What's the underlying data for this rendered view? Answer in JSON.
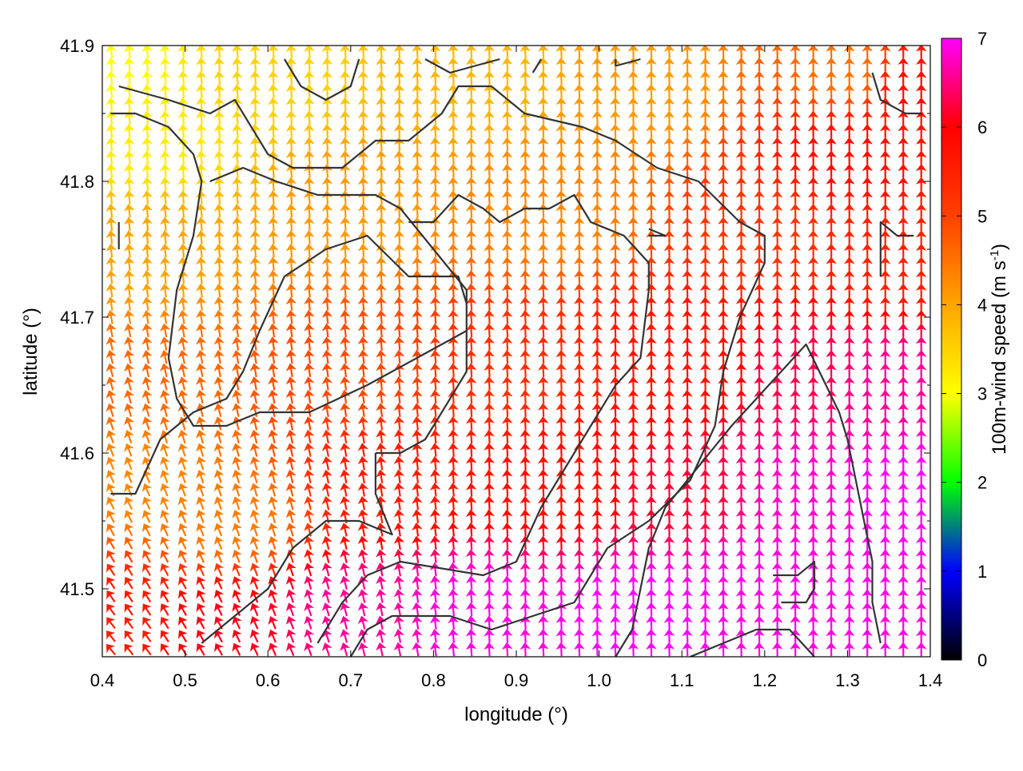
{
  "chart_data": {
    "type": "vector-field",
    "xlabel": "longitude (°)",
    "ylabel": "latitude (°)",
    "colorbar_label_main": "100m-wind speed (m s",
    "colorbar_label_sup": "-1",
    "colorbar_label_end": ")",
    "xlim": [
      0.4,
      1.4
    ],
    "ylim": [
      41.45,
      41.9
    ],
    "xticks": [
      0.4,
      0.5,
      0.6,
      0.7,
      0.8,
      0.9,
      1.0,
      1.1,
      1.2,
      1.3,
      1.4
    ],
    "xtick_labels": [
      "0.4",
      "0.5",
      "0.6",
      "0.7",
      "0.8",
      "0.9",
      "1.0",
      "1.1",
      "1.2",
      "1.3",
      "1.4"
    ],
    "yticks": [
      41.5,
      41.6,
      41.7,
      41.8,
      41.9
    ],
    "ytick_labels": [
      "41.5",
      "41.6",
      "41.7",
      "41.8",
      "41.9"
    ],
    "colorbar": {
      "range": [
        0,
        7
      ],
      "ticks": [
        0,
        1,
        2,
        3,
        4,
        5,
        6,
        7
      ],
      "tick_labels": [
        "0",
        "1",
        "2",
        "3",
        "4",
        "5",
        "6",
        "7"
      ],
      "palette": [
        "#000000",
        "#0000ff",
        "#00ff00",
        "#ffff00",
        "#ffa500",
        "#ff4000",
        "#ff0000",
        "#ff00ff"
      ]
    },
    "grid": false,
    "field_grid": {
      "nx": 46,
      "ny": 46
    },
    "speed_anchors": [
      {
        "lon": 0.4,
        "lat": 41.89,
        "speed": 3.0
      },
      {
        "lon": 0.45,
        "lat": 41.83,
        "speed": 3.2
      },
      {
        "lon": 0.6,
        "lat": 41.88,
        "speed": 3.5
      },
      {
        "lon": 0.85,
        "lat": 41.88,
        "speed": 3.8
      },
      {
        "lon": 1.05,
        "lat": 41.87,
        "speed": 4.1
      },
      {
        "lon": 1.3,
        "lat": 41.88,
        "speed": 4.5
      },
      {
        "lon": 1.38,
        "lat": 41.87,
        "speed": 5.8
      },
      {
        "lon": 1.3,
        "lat": 41.82,
        "speed": 5.8
      },
      {
        "lon": 0.45,
        "lat": 41.75,
        "speed": 4.0
      },
      {
        "lon": 0.7,
        "lat": 41.78,
        "speed": 4.1
      },
      {
        "lon": 0.95,
        "lat": 41.78,
        "speed": 4.3
      },
      {
        "lon": 1.2,
        "lat": 41.76,
        "speed": 5.2
      },
      {
        "lon": 1.35,
        "lat": 41.74,
        "speed": 5.5
      },
      {
        "lon": 0.45,
        "lat": 41.65,
        "speed": 4.6
      },
      {
        "lon": 0.7,
        "lat": 41.66,
        "speed": 4.9
      },
      {
        "lon": 0.9,
        "lat": 41.66,
        "speed": 5.3
      },
      {
        "lon": 1.1,
        "lat": 41.67,
        "speed": 5.7
      },
      {
        "lon": 1.25,
        "lat": 41.66,
        "speed": 6.3
      },
      {
        "lon": 1.35,
        "lat": 41.65,
        "speed": 6.6
      },
      {
        "lon": 0.45,
        "lat": 41.58,
        "speed": 4.3
      },
      {
        "lon": 0.55,
        "lat": 41.55,
        "speed": 4.4
      },
      {
        "lon": 0.75,
        "lat": 41.58,
        "speed": 5.6
      },
      {
        "lon": 0.95,
        "lat": 41.58,
        "speed": 5.8
      },
      {
        "lon": 1.1,
        "lat": 41.57,
        "speed": 6.2
      },
      {
        "lon": 1.25,
        "lat": 41.57,
        "speed": 6.8
      },
      {
        "lon": 1.38,
        "lat": 41.57,
        "speed": 7.0
      },
      {
        "lon": 0.42,
        "lat": 41.47,
        "speed": 5.6
      },
      {
        "lon": 0.55,
        "lat": 41.47,
        "speed": 6.1
      },
      {
        "lon": 0.7,
        "lat": 41.48,
        "speed": 6.6
      },
      {
        "lon": 0.85,
        "lat": 41.48,
        "speed": 6.9
      },
      {
        "lon": 1.05,
        "lat": 41.48,
        "speed": 7.0
      },
      {
        "lon": 1.2,
        "lat": 41.5,
        "speed": 6.9
      },
      {
        "lon": 1.35,
        "lat": 41.48,
        "speed": 6.9
      }
    ],
    "contours": [
      [
        [
          0.42,
          41.87
        ],
        [
          0.48,
          41.86
        ],
        [
          0.53,
          41.85
        ],
        [
          0.56,
          41.86
        ],
        [
          0.6,
          41.82
        ],
        [
          0.63,
          41.81
        ],
        [
          0.69,
          41.81
        ],
        [
          0.73,
          41.83
        ],
        [
          0.77,
          41.83
        ],
        [
          0.81,
          41.85
        ],
        [
          0.83,
          41.87
        ],
        [
          0.87,
          41.87
        ],
        [
          0.91,
          41.85
        ],
        [
          0.98,
          41.84
        ],
        [
          1.02,
          41.83
        ],
        [
          1.07,
          41.81
        ],
        [
          1.12,
          41.8
        ],
        [
          1.17,
          41.77
        ],
        [
          1.2,
          41.76
        ],
        [
          1.2,
          41.74
        ],
        [
          1.17,
          41.7
        ],
        [
          1.15,
          41.66
        ],
        [
          1.14,
          41.62
        ],
        [
          1.11,
          41.58
        ],
        [
          1.06,
          41.55
        ],
        [
          1.01,
          41.53
        ],
        [
          0.97,
          41.49
        ],
        [
          0.92,
          41.48
        ],
        [
          0.87,
          41.47
        ],
        [
          0.82,
          41.48
        ],
        [
          0.75,
          41.48
        ],
        [
          0.72,
          41.47
        ],
        [
          0.69,
          41.44
        ]
      ],
      [
        [
          0.41,
          41.85
        ],
        [
          0.44,
          41.85
        ],
        [
          0.48,
          41.84
        ],
        [
          0.51,
          41.82
        ],
        [
          0.52,
          41.8
        ],
        [
          0.51,
          41.76
        ],
        [
          0.49,
          41.72
        ],
        [
          0.48,
          41.67
        ],
        [
          0.49,
          41.64
        ],
        [
          0.51,
          41.62
        ],
        [
          0.55,
          41.62
        ],
        [
          0.59,
          41.63
        ],
        [
          0.65,
          41.63
        ],
        [
          0.72,
          41.65
        ],
        [
          0.78,
          41.67
        ],
        [
          0.84,
          41.69
        ],
        [
          0.84,
          41.72
        ],
        [
          0.8,
          41.75
        ],
        [
          0.76,
          41.78
        ],
        [
          0.73,
          41.79
        ],
        [
          0.66,
          41.79
        ],
        [
          0.61,
          41.8
        ],
        [
          0.57,
          41.81
        ],
        [
          0.53,
          41.8
        ]
      ],
      [
        [
          0.41,
          41.57
        ],
        [
          0.44,
          41.57
        ],
        [
          0.47,
          41.61
        ],
        [
          0.51,
          41.63
        ],
        [
          0.55,
          41.64
        ],
        [
          0.57,
          41.66
        ],
        [
          0.59,
          41.69
        ],
        [
          0.62,
          41.73
        ],
        [
          0.67,
          41.75
        ],
        [
          0.72,
          41.76
        ],
        [
          0.77,
          41.73
        ],
        [
          0.83,
          41.73
        ],
        [
          0.84,
          41.71
        ]
      ],
      [
        [
          0.73,
          41.6
        ],
        [
          0.76,
          41.6
        ],
        [
          0.79,
          41.61
        ],
        [
          0.81,
          41.63
        ],
        [
          0.84,
          41.66
        ],
        [
          0.84,
          41.69
        ]
      ],
      [
        [
          0.73,
          41.6
        ],
        [
          0.73,
          41.57
        ],
        [
          0.75,
          41.54
        ],
        [
          0.71,
          41.55
        ],
        [
          0.67,
          41.55
        ],
        [
          0.63,
          41.53
        ],
        [
          0.6,
          41.5
        ],
        [
          0.58,
          41.49
        ],
        [
          0.54,
          41.47
        ],
        [
          0.52,
          41.46
        ]
      ],
      [
        [
          0.66,
          41.46
        ],
        [
          0.69,
          41.49
        ],
        [
          0.72,
          41.51
        ],
        [
          0.76,
          41.52
        ],
        [
          0.86,
          41.51
        ],
        [
          0.9,
          41.52
        ],
        [
          0.93,
          41.56
        ],
        [
          0.96,
          41.59
        ],
        [
          0.99,
          41.62
        ],
        [
          1.02,
          41.65
        ],
        [
          1.05,
          41.67
        ],
        [
          1.06,
          41.72
        ],
        [
          1.06,
          41.74
        ],
        [
          1.03,
          41.76
        ],
        [
          0.99,
          41.77
        ],
        [
          0.97,
          41.79
        ],
        [
          0.94,
          41.78
        ],
        [
          0.91,
          41.78
        ],
        [
          0.88,
          41.77
        ],
        [
          0.86,
          41.78
        ],
        [
          0.83,
          41.79
        ],
        [
          0.8,
          41.77
        ],
        [
          0.77,
          41.77
        ]
      ],
      [
        [
          1.02,
          41.45
        ],
        [
          1.04,
          41.47
        ],
        [
          1.05,
          41.5
        ],
        [
          1.06,
          41.53
        ],
        [
          1.08,
          41.56
        ],
        [
          1.12,
          41.59
        ],
        [
          1.16,
          41.62
        ],
        [
          1.19,
          41.64
        ],
        [
          1.22,
          41.66
        ],
        [
          1.25,
          41.68
        ],
        [
          1.29,
          41.63
        ],
        [
          1.3,
          41.61
        ],
        [
          1.31,
          41.58
        ],
        [
          1.32,
          41.55
        ],
        [
          1.33,
          41.52
        ],
        [
          1.33,
          41.49
        ],
        [
          1.34,
          41.46
        ]
      ],
      [
        [
          1.34,
          41.73
        ],
        [
          1.34,
          41.77
        ],
        [
          1.36,
          41.76
        ],
        [
          1.38,
          41.76
        ]
      ],
      [
        [
          1.33,
          41.88
        ],
        [
          1.34,
          41.86
        ],
        [
          1.37,
          41.85
        ],
        [
          1.39,
          41.85
        ]
      ],
      [
        [
          1.21,
          41.51
        ],
        [
          1.24,
          41.51
        ],
        [
          1.26,
          41.52
        ],
        [
          1.26,
          41.5
        ],
        [
          1.25,
          41.49
        ],
        [
          1.22,
          41.49
        ]
      ],
      [
        [
          1.06,
          41.765
        ],
        [
          1.08,
          41.76
        ],
        [
          1.06,
          41.76
        ]
      ],
      [
        [
          1.11,
          41.45
        ],
        [
          1.15,
          41.46
        ],
        [
          1.19,
          41.47
        ],
        [
          1.23,
          41.47
        ],
        [
          1.26,
          41.45
        ]
      ],
      [
        [
          0.42,
          41.77
        ],
        [
          0.42,
          41.75
        ]
      ],
      [
        [
          0.62,
          41.89
        ],
        [
          0.64,
          41.87
        ],
        [
          0.67,
          41.86
        ],
        [
          0.7,
          41.87
        ],
        [
          0.71,
          41.89
        ]
      ],
      [
        [
          0.79,
          41.89
        ],
        [
          0.82,
          41.88
        ],
        [
          0.88,
          41.89
        ]
      ],
      [
        [
          0.92,
          41.88
        ],
        [
          0.93,
          41.89
        ]
      ],
      [
        [
          1.02,
          41.885
        ],
        [
          1.05,
          41.89
        ]
      ],
      [
        [
          1.02,
          41.89
        ],
        [
          1.02,
          41.885
        ]
      ]
    ]
  }
}
